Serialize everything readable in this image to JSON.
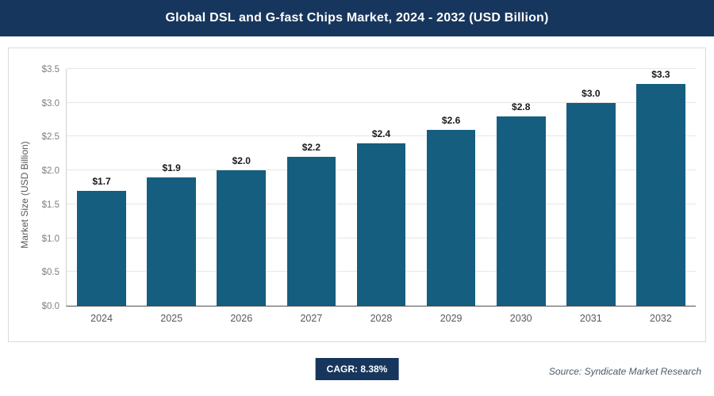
{
  "header": {
    "title": "Global DSL and G-fast Chips Market, 2024 - 2032 (USD Billion)"
  },
  "footer": {
    "cagr_label": "CAGR: 8.38%",
    "source": "Source: Syndicate Market Research"
  },
  "colors": {
    "header_bg": "#17365d",
    "badge_bg": "#17365d",
    "bar": "#155e7f"
  },
  "chart_data": {
    "type": "bar",
    "title": "Global DSL and G-fast Chips Market, 2024 - 2032 (USD Billion)",
    "categories": [
      "2024",
      "2025",
      "2026",
      "2027",
      "2028",
      "2029",
      "2030",
      "2031",
      "2032"
    ],
    "values": [
      1.7,
      1.9,
      2.0,
      2.2,
      2.4,
      2.6,
      2.8,
      3.0,
      3.3
    ],
    "value_labels": [
      "$1.7",
      "$1.9",
      "$2.0",
      "$2.2",
      "$2.4",
      "$2.6",
      "$2.8",
      "$3.0",
      "$3.3"
    ],
    "xlabel": "",
    "ylabel": "Market Size (USD Billion)",
    "ylim": [
      0,
      3.5
    ],
    "ytick_step": 0.5,
    "ytick_labels": [
      "$0.0",
      "$0.5",
      "$1.0",
      "$1.5",
      "$2.0",
      "$2.5",
      "$3.0",
      "$3.5"
    ],
    "grid": true,
    "legend": false,
    "cagr": "8.38%"
  }
}
